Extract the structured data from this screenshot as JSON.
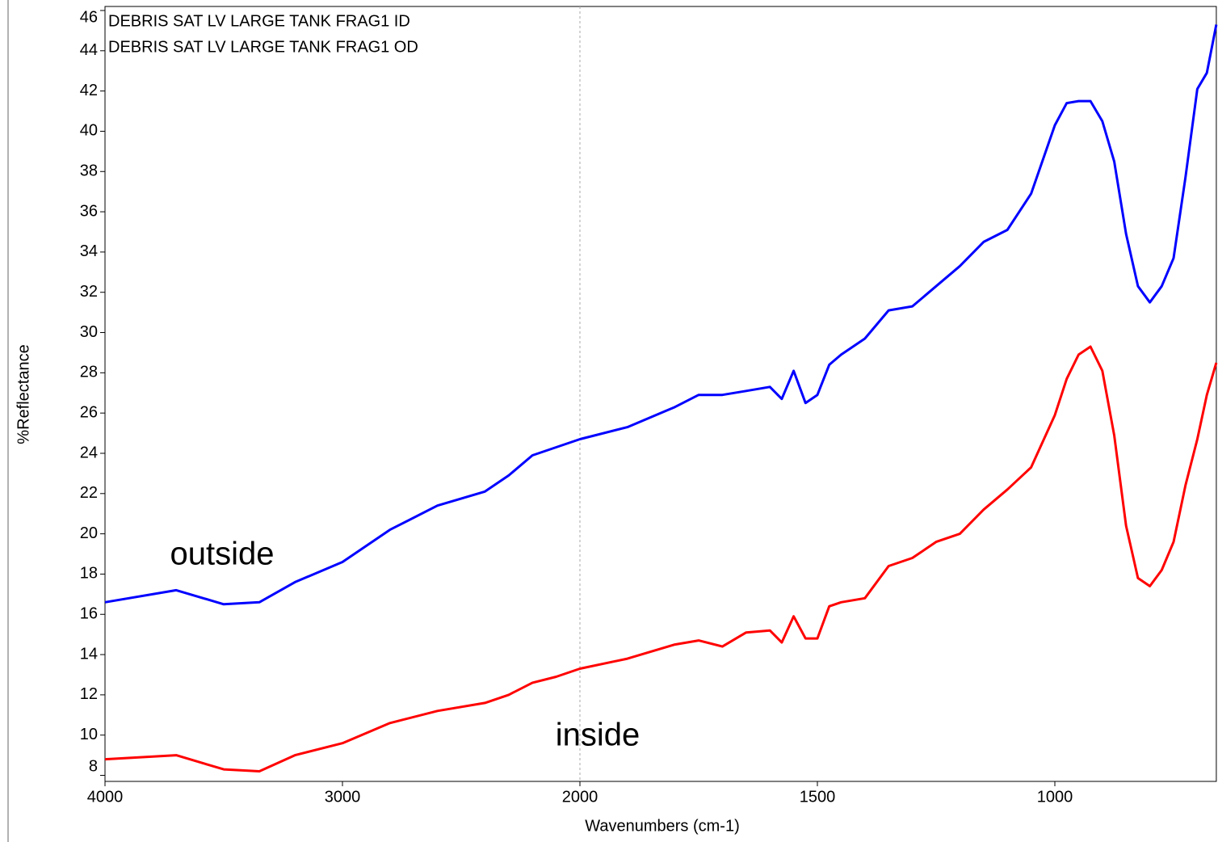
{
  "chart_data": {
    "type": "line",
    "x_label": "Wavenumbers (cm-1)",
    "y_label": "%Reflectance",
    "annotations": [
      "outside",
      "inside"
    ],
    "x": [
      4000,
      3700,
      3500,
      3350,
      3200,
      3000,
      2800,
      2600,
      2400,
      2300,
      2200,
      2100,
      2000,
      1900,
      1800,
      1750,
      1700,
      1650,
      1600,
      1575,
      1550,
      1525,
      1500,
      1475,
      1450,
      1400,
      1350,
      1300,
      1250,
      1200,
      1150,
      1100,
      1050,
      1000,
      975,
      950,
      925,
      900,
      875,
      850,
      825,
      800,
      775,
      750,
      725,
      700,
      680,
      660
    ],
    "series": [
      {
        "name": "DEBRIS SAT LV LARGE TANK FRAG1 ID",
        "color": "#ff0000",
        "values": [
          8.8,
          9.0,
          8.3,
          8.2,
          9.0,
          9.6,
          10.6,
          11.2,
          11.6,
          12.0,
          12.6,
          12.9,
          13.3,
          13.8,
          14.5,
          14.7,
          14.4,
          15.1,
          15.2,
          14.6,
          15.9,
          14.8,
          14.8,
          16.4,
          16.6,
          16.8,
          18.4,
          18.8,
          19.6,
          20.0,
          21.2,
          22.2,
          23.3,
          25.9,
          27.7,
          28.9,
          29.3,
          28.1,
          24.9,
          20.4,
          17.8,
          17.4,
          18.2,
          19.6,
          22.4,
          24.7,
          26.9,
          28.5
        ]
      },
      {
        "name": "DEBRIS SAT LV LARGE TANK FRAG1 OD",
        "color": "#0000ff",
        "values": [
          16.6,
          17.2,
          16.5,
          16.6,
          17.6,
          18.6,
          20.2,
          21.4,
          22.1,
          22.9,
          23.9,
          24.3,
          24.7,
          25.3,
          26.3,
          26.9,
          26.9,
          27.1,
          27.3,
          26.7,
          28.1,
          26.5,
          26.9,
          28.4,
          28.9,
          29.7,
          31.1,
          31.3,
          32.3,
          33.3,
          34.5,
          35.1,
          36.9,
          40.3,
          41.4,
          41.5,
          41.5,
          40.5,
          38.5,
          34.9,
          32.3,
          31.5,
          32.3,
          33.7,
          37.7,
          42.1,
          42.9,
          45.3
        ]
      }
    ],
    "xlim": [
      4000,
      660
    ],
    "xticks": [
      4000,
      3000,
      2000,
      1500,
      1000
    ],
    "ylim": [
      7.7,
      46.2
    ],
    "yticks": [
      8,
      10,
      12,
      14,
      16,
      18,
      20,
      22,
      24,
      26,
      28,
      30,
      32,
      34,
      36,
      38,
      40,
      42,
      44,
      46
    ],
    "legend": "top-left"
  }
}
